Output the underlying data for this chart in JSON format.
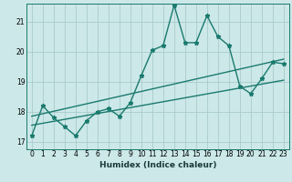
{
  "xlabel": "Humidex (Indice chaleur)",
  "bg_color": "#cce8e8",
  "grid_color": "#aacccc",
  "line_color": "#1a7a6e",
  "xlim": [
    -0.5,
    23.5
  ],
  "ylim": [
    16.75,
    21.6
  ],
  "yticks": [
    17,
    18,
    19,
    20,
    21
  ],
  "xticks": [
    0,
    1,
    2,
    3,
    4,
    5,
    6,
    7,
    8,
    9,
    10,
    11,
    12,
    13,
    14,
    15,
    16,
    17,
    18,
    19,
    20,
    21,
    22,
    23
  ],
  "main_x": [
    0,
    1,
    2,
    3,
    4,
    5,
    6,
    7,
    8,
    9,
    10,
    11,
    12,
    13,
    14,
    15,
    16,
    17,
    18,
    19,
    20,
    21,
    22,
    23
  ],
  "main_y": [
    17.2,
    18.2,
    17.8,
    17.5,
    17.2,
    17.7,
    18.0,
    18.1,
    17.85,
    18.3,
    19.2,
    20.05,
    20.2,
    21.55,
    20.3,
    20.3,
    21.2,
    20.5,
    20.2,
    18.85,
    18.6,
    19.1,
    19.65,
    19.6
  ],
  "trend1_x": [
    0,
    23
  ],
  "trend1_y": [
    17.55,
    19.05
  ],
  "trend2_x": [
    0,
    23
  ],
  "trend2_y": [
    17.85,
    19.75
  ],
  "marker_size": 3.5,
  "linewidth": 1.0,
  "tick_fontsize": 5.5,
  "xlabel_fontsize": 6.5
}
